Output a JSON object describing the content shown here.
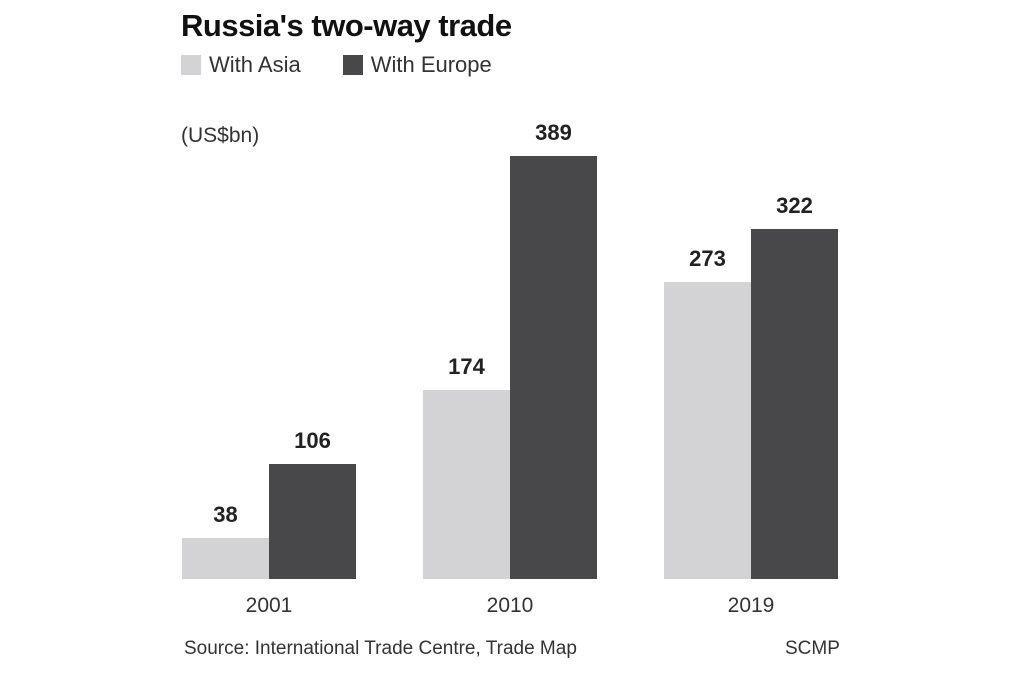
{
  "title": "Russia's two-way trade",
  "legend": [
    {
      "label": "With Asia",
      "color": "#d3d3d5"
    },
    {
      "label": "With Europe",
      "color": "#48484a"
    }
  ],
  "unit_label": "(US$bn)",
  "source": "Source: International Trade Centre, Trade Map",
  "credit": "SCMP",
  "chart_data": {
    "type": "bar",
    "title": "Russia's two-way trade",
    "xlabel": "",
    "ylabel": "(US$bn)",
    "categories": [
      "2001",
      "2010",
      "2019"
    ],
    "series": [
      {
        "name": "With Asia",
        "values": [
          38,
          174,
          273
        ],
        "color": "#d3d3d5"
      },
      {
        "name": "With Europe",
        "values": [
          106,
          389,
          322
        ],
        "color": "#48484a"
      }
    ],
    "ylim": [
      0,
      389
    ],
    "grid": false,
    "legend_position": "top-left",
    "data_labels": true
  }
}
